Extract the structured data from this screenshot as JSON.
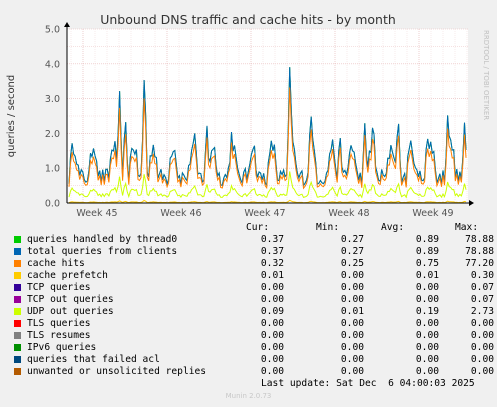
{
  "chart_data": {
    "type": "line",
    "title": "Unbound DNS traffic and cache hits - by month",
    "ylabel": "queries / second",
    "ylim": [
      0,
      5
    ],
    "yticks": [
      "0.0",
      "1.0",
      "2.0",
      "3.0",
      "4.0",
      "5.0"
    ],
    "xticks": [
      "Week 45",
      "Week 46",
      "Week 47",
      "Week 48",
      "Week 49"
    ],
    "grid": true,
    "side_label": "RRDTOOL / TOBI OETIKER",
    "peaks": [
      {
        "week_pos": 0.25,
        "value": 3.3
      },
      {
        "week_pos": 0.55,
        "value": 3.9
      },
      {
        "week_pos": 0.32,
        "value": 2.6
      },
      {
        "week_pos": 1.15,
        "value": 2.2
      },
      {
        "week_pos": 1.3,
        "value": 2.3
      },
      {
        "week_pos": 1.6,
        "value": 2.2
      },
      {
        "week_pos": 2.3,
        "value": 4.2
      },
      {
        "week_pos": 2.55,
        "value": 2.8
      },
      {
        "week_pos": 2.9,
        "value": 2.1
      },
      {
        "week_pos": 3.2,
        "value": 2.3
      },
      {
        "week_pos": 3.3,
        "value": 2.6
      },
      {
        "week_pos": 3.6,
        "value": 2.6
      },
      {
        "week_pos": 3.95,
        "value": 2.1
      },
      {
        "week_pos": 4.2,
        "value": 2.8
      },
      {
        "week_pos": 4.4,
        "value": 2.4
      },
      {
        "week_pos": 4.45,
        "value": 3.1
      }
    ],
    "series": [
      {
        "name": "queries handled by thread0",
        "color": "#00cc00",
        "cur": "0.37",
        "min": "0.27",
        "avg": "0.89",
        "max": "78.88"
      },
      {
        "name": "total queries from clients",
        "color": "#0066b3",
        "cur": "0.37",
        "min": "0.27",
        "avg": "0.89",
        "max": "78.88"
      },
      {
        "name": "cache hits",
        "color": "#ff8000",
        "cur": "0.32",
        "min": "0.25",
        "avg": "0.75",
        "max": "77.20"
      },
      {
        "name": "cache prefetch",
        "color": "#ffcc00",
        "cur": "0.01",
        "min": "0.00",
        "avg": "0.01",
        "max": "0.30"
      },
      {
        "name": "TCP queries",
        "color": "#330099",
        "cur": "0.00",
        "min": "0.00",
        "avg": "0.00",
        "max": "0.07"
      },
      {
        "name": "TCP out queries",
        "color": "#990099",
        "cur": "0.00",
        "min": "0.00",
        "avg": "0.00",
        "max": "0.07"
      },
      {
        "name": "UDP out queries",
        "color": "#ccff00",
        "cur": "0.09",
        "min": "0.01",
        "avg": "0.19",
        "max": "2.73"
      },
      {
        "name": "TLS queries",
        "color": "#ff0000",
        "cur": "0.00",
        "min": "0.00",
        "avg": "0.00",
        "max": "0.00"
      },
      {
        "name": "TLS resumes",
        "color": "#808080",
        "cur": "0.00",
        "min": "0.00",
        "avg": "0.00",
        "max": "0.00"
      },
      {
        "name": "IPv6 queries",
        "color": "#008f00",
        "cur": "0.00",
        "min": "0.00",
        "avg": "0.00",
        "max": "0.00"
      },
      {
        "name": "queries that failed acl",
        "color": "#00487d",
        "cur": "0.00",
        "min": "0.00",
        "avg": "0.00",
        "max": "0.00"
      },
      {
        "name": "unwanted or unsolicited replies",
        "color": "#b35a00",
        "cur": "0.00",
        "min": "0.00",
        "avg": "0.00",
        "max": "0.00"
      }
    ]
  },
  "legend": {
    "header": {
      "cur": "Cur:",
      "min": "Min:",
      "avg": "Avg:",
      "max": "Max:"
    }
  },
  "footer": {
    "last_update": "Last update: Sat Dec  6 04:00:03 2025",
    "munin": "Munin 2.0.73"
  }
}
